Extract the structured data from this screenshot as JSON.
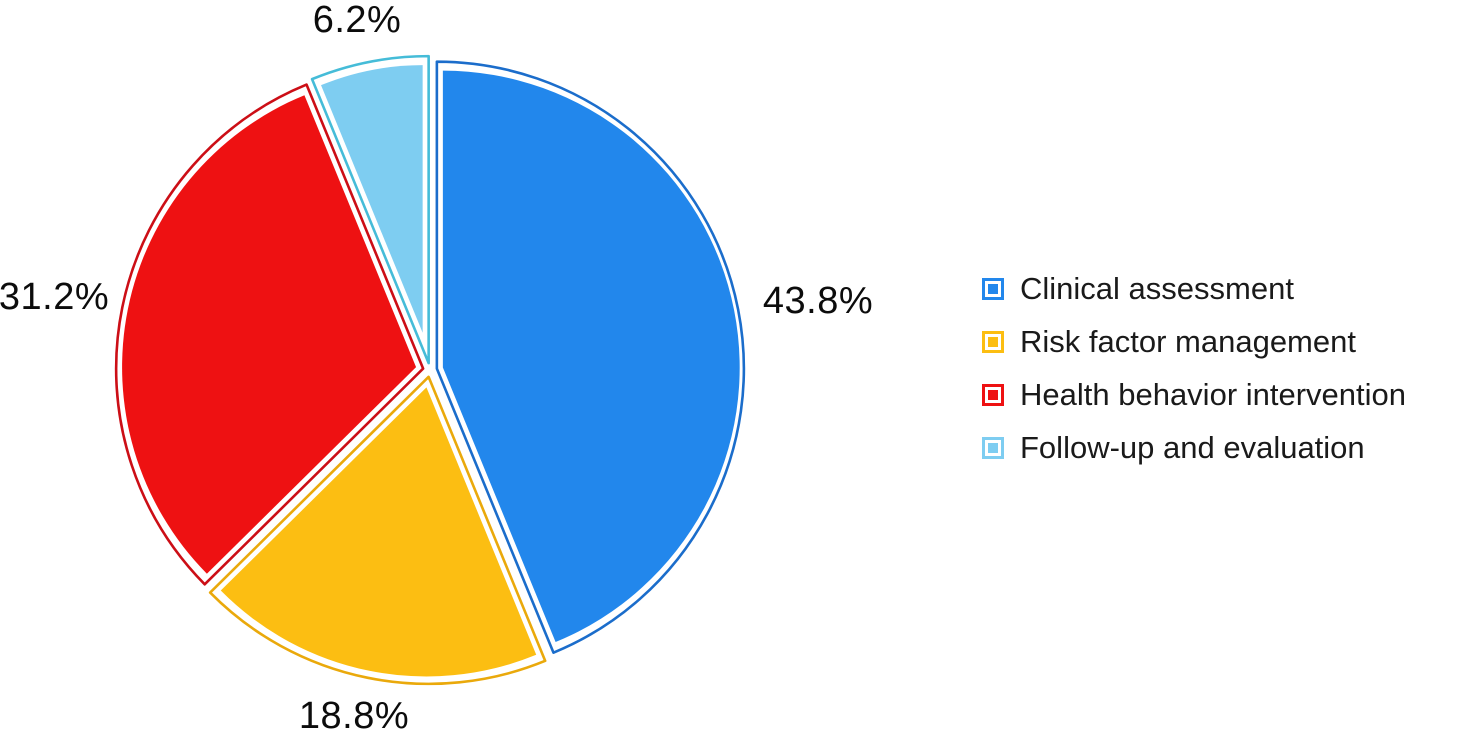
{
  "figure": {
    "background": "#ffffff"
  },
  "chart_data": {
    "type": "pie",
    "title": "",
    "unit": "%",
    "categories": [
      "Clinical assessment",
      "Risk factor management",
      "Health behavior intervention",
      "Follow-up and evaluation"
    ],
    "values": [
      43.8,
      18.8,
      31.2,
      6.2
    ],
    "start_angle_deg": 0,
    "direction": "clockwise",
    "legend_position": "right",
    "data_labels": "outside",
    "slices": [
      {
        "label": "Clinical assessment",
        "value": 43.8,
        "pct_label": "43.8%",
        "fill": "#2287ec",
        "outline": "#1b6dcb"
      },
      {
        "label": "Risk factor management",
        "value": 18.8,
        "pct_label": "18.8%",
        "fill": "#fcbe12",
        "outline": "#eaa90b"
      },
      {
        "label": "Health behavior intervention",
        "value": 31.2,
        "pct_label": "31.2%",
        "fill": "#ee1112",
        "outline": "#cc0e16"
      },
      {
        "label": "Follow-up and evaluation",
        "value": 6.2,
        "pct_label": "6.2%",
        "fill": "#7ecdf1",
        "outline": "#45bcd8"
      }
    ]
  }
}
